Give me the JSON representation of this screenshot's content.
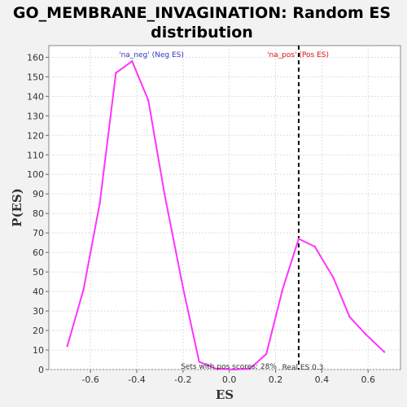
{
  "chart_data": {
    "type": "line",
    "title_line1": "GO_MEMBRANE_INVAGINATION: Random ES",
    "title_line2": "distribution",
    "xlabel": "ES",
    "ylabel": "P(ES)",
    "xlim": [
      -0.78,
      0.74
    ],
    "ylim": [
      0,
      166
    ],
    "x_ticks": [
      -0.6,
      -0.4,
      -0.2,
      0.0,
      0.2,
      0.4,
      0.6
    ],
    "x_tick_labels": [
      "-0.6",
      "-0.4",
      "-0.2",
      "0.0",
      "0.2",
      "0.4",
      "0.6"
    ],
    "y_ticks": [
      0,
      10,
      20,
      30,
      40,
      50,
      60,
      70,
      80,
      90,
      100,
      110,
      120,
      130,
      140,
      150,
      160
    ],
    "y_tick_labels": [
      "0",
      "10",
      "20",
      "30",
      "40",
      "50",
      "60",
      "70",
      "80",
      "90",
      "100",
      "110",
      "120",
      "130",
      "140",
      "150",
      "160"
    ],
    "grid": true,
    "series": [
      {
        "color": "#ff33ff",
        "x": [
          -0.7,
          -0.63,
          -0.56,
          -0.49,
          -0.42,
          -0.35,
          -0.28,
          -0.2,
          -0.13,
          -0.06,
          0.02,
          0.09,
          0.16,
          0.23,
          0.3,
          0.37,
          0.45,
          0.52,
          0.59,
          0.67
        ],
        "y": [
          12,
          41,
          85,
          152,
          158,
          138,
          90,
          42,
          4,
          0.5,
          0,
          0.5,
          8,
          41,
          67,
          63,
          47,
          27,
          18,
          9
        ]
      }
    ],
    "real_es": 0.3,
    "annotations": {
      "neg_label": "'na_neg' (Neg ES)",
      "pos_label": "'na_pos' (Pos ES)",
      "pos_scores": "Sets with pos scores: 28%",
      "real_es_label": "Real ES 0.3"
    },
    "colors": {
      "neg": "#3333cc",
      "pos": "#dd1111",
      "line": "#ff33ff"
    }
  }
}
